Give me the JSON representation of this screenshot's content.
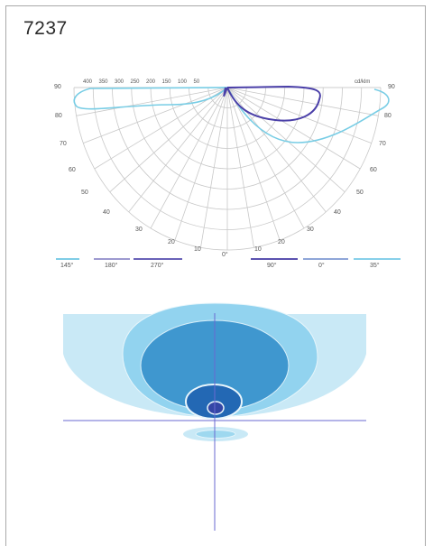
{
  "product_code": "7237",
  "polar": {
    "unit": "cd/klm",
    "intensity_ticks": [
      "400",
      "350",
      "300",
      "250",
      "200",
      "150",
      "100",
      "50"
    ],
    "angle_labels_left": [
      "90",
      "80",
      "70",
      "60",
      "50",
      "40",
      "30",
      "20",
      "10"
    ],
    "angle_labels_right": [
      "90",
      "80",
      "70",
      "60",
      "50",
      "40",
      "30",
      "20",
      "10"
    ],
    "center_label": "0°"
  },
  "legend": [
    {
      "label": "145°",
      "color": "#7fcde6"
    },
    {
      "label": "180°",
      "color": "#9d9ad0"
    },
    {
      "label": "270°",
      "color": "#6a63b8"
    },
    {
      "label": "90°",
      "color": "#5b52b0"
    },
    {
      "label": "0°",
      "color": "#8fa6d8"
    },
    {
      "label": "35°",
      "color": "#87d0ea"
    }
  ],
  "colors": {
    "curve_light": "#78cde5",
    "curve_dark": "#4a3fa8",
    "grid": "#c8c8c8",
    "iso_1": "#c9e9f6",
    "iso_2": "#92d3ef",
    "iso_3": "#3f97cf",
    "iso_4": "#2368b4",
    "iso_5": "#3446a6",
    "axis_line": "#6a6ad2"
  }
}
